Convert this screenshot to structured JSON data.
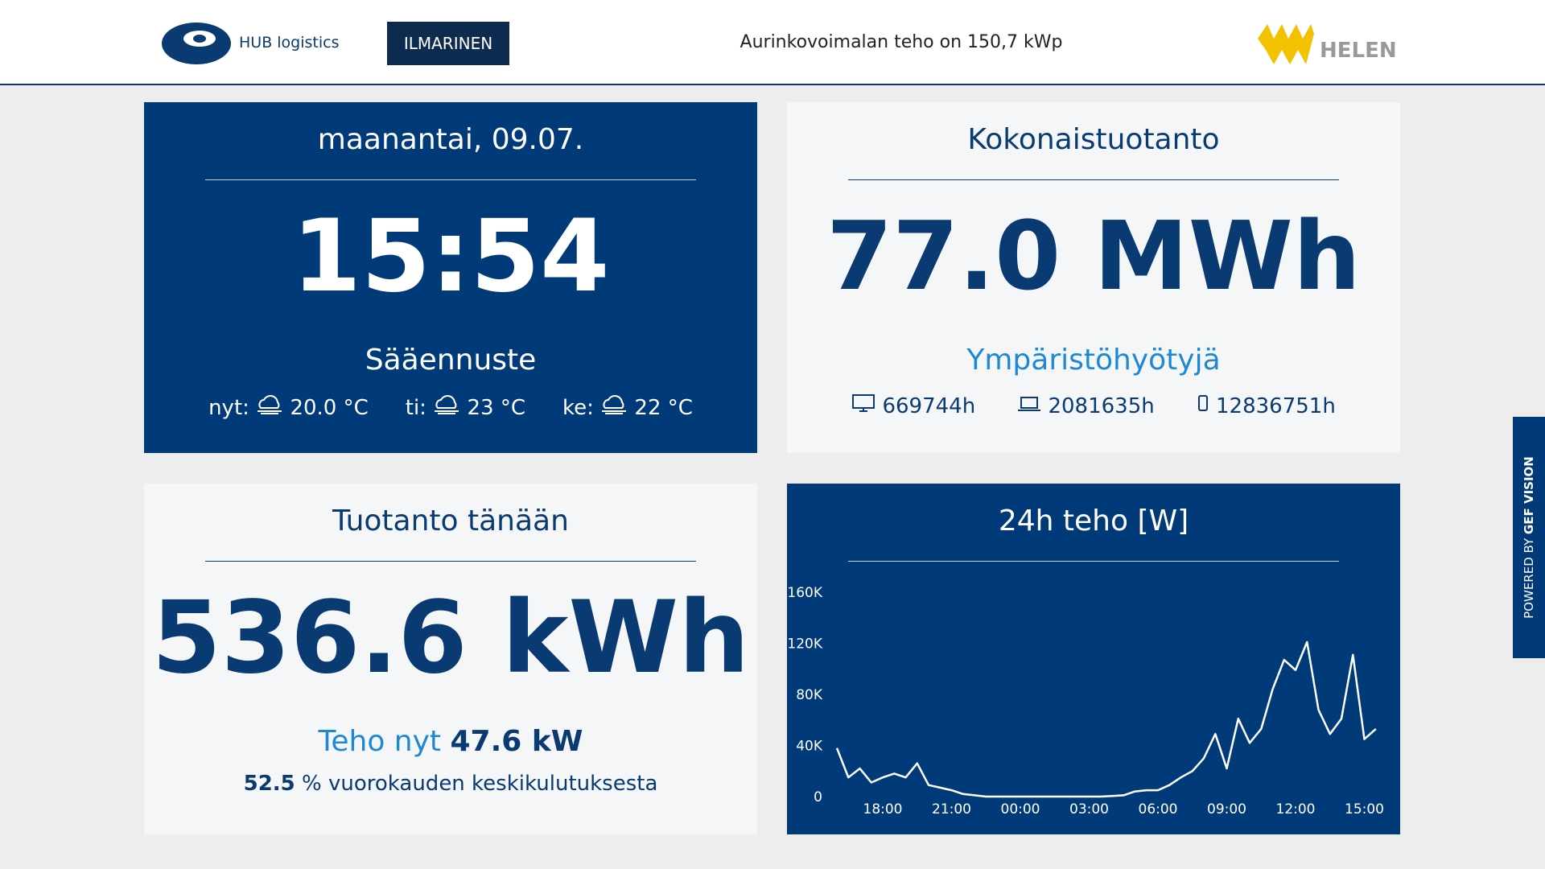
{
  "header": {
    "logo_left": "HUB logistics",
    "logo_middle": "ILMARINEN",
    "title": "Aurinkovoimalan teho on 150,7 kWp",
    "logo_right": "HELEN"
  },
  "side_tab": {
    "prefix": "POWERED BY",
    "brand": "GEF VISION"
  },
  "clock": {
    "date": "maanantai, 09.07.",
    "time": "15:54",
    "forecast_title": "Sääennuste",
    "forecast": [
      {
        "label": "nyt:",
        "temp": "20.0 °C"
      },
      {
        "label": "ti:",
        "temp": "23 °C"
      },
      {
        "label": "ke:",
        "temp": "22 °C"
      }
    ]
  },
  "total": {
    "title": "Kokonaistuotanto",
    "value": "77.0 MWh",
    "benefits_title": "Ympäristöhyötyjä",
    "benefits": [
      "669744h",
      "2081635h",
      "12836751h"
    ]
  },
  "today": {
    "title": "Tuotanto tänään",
    "value": "536.6 kWh",
    "power_label": "Teho nyt",
    "power_value": "47.6 kW",
    "share_value": "52.5",
    "share_text": "% vuorokauden keskikulutuksesta"
  },
  "chart_data": {
    "type": "line",
    "title": "24h teho [W]",
    "color": "#ffffff",
    "x": [
      "16:00",
      "16:30",
      "17:00",
      "17:30",
      "18:00",
      "18:30",
      "19:00",
      "19:30",
      "20:00",
      "20:30",
      "21:00",
      "21:30",
      "22:00",
      "22:30",
      "23:00",
      "23:30",
      "00:00",
      "00:30",
      "01:00",
      "01:30",
      "02:00",
      "02:30",
      "03:00",
      "03:30",
      "04:00",
      "04:30",
      "05:00",
      "05:30",
      "06:00",
      "06:30",
      "07:00",
      "07:30",
      "08:00",
      "08:30",
      "09:00",
      "09:30",
      "10:00",
      "10:30",
      "11:00",
      "11:30",
      "12:00",
      "12:30",
      "13:00",
      "13:30",
      "14:00",
      "14:30",
      "15:00",
      "15:30"
    ],
    "values": [
      38000,
      15000,
      22000,
      11000,
      15000,
      18000,
      15000,
      26000,
      9000,
      7000,
      5000,
      2000,
      1000,
      0,
      0,
      0,
      0,
      0,
      0,
      0,
      0,
      0,
      0,
      0,
      500,
      1000,
      4000,
      5000,
      5000,
      9000,
      15000,
      20000,
      30000,
      49000,
      22000,
      61000,
      42000,
      53000,
      84000,
      107000,
      99000,
      121000,
      68000,
      49000,
      61000,
      111000,
      45000,
      53000
    ],
    "xticks": [
      "18:00",
      "21:00",
      "00:00",
      "03:00",
      "06:00",
      "09:00",
      "12:00",
      "15:00"
    ],
    "ylim": [
      0,
      160000
    ],
    "yticks": [
      0,
      {
        "value": 40000,
        "label": "40K"
      },
      {
        "value": 80000,
        "label": "80K"
      },
      {
        "value": 120000,
        "label": "120K"
      },
      {
        "value": 160000,
        "label": "160K"
      }
    ]
  }
}
